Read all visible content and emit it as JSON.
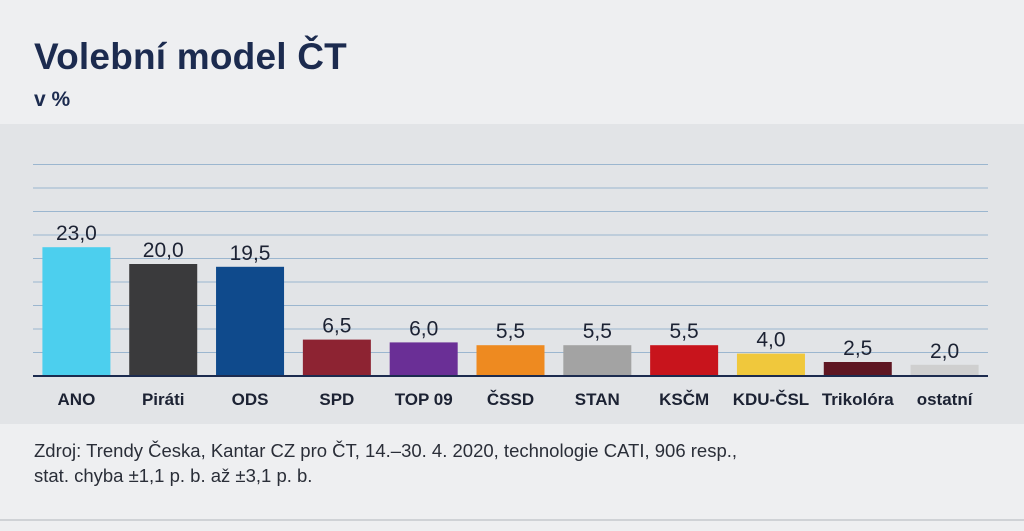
{
  "header": {
    "title": "Volební model ČT",
    "subtitle": "v %"
  },
  "colors": {
    "gridline": "#9bb6cf",
    "baseline": "#1c2b4f"
  },
  "chart_data": {
    "type": "bar",
    "title": "Volební model ČT",
    "subtitle": "v %",
    "xlabel": "",
    "ylabel": "",
    "ylim": [
      0,
      30
    ],
    "grid": true,
    "categories": [
      "ANO",
      "Piráti",
      "ODS",
      "SPD",
      "TOP 09",
      "ČSSD",
      "STAN",
      "KSČM",
      "KDU-ČSL",
      "Trikolóra",
      "ostatní"
    ],
    "values": [
      23.0,
      20.0,
      19.5,
      6.5,
      6.0,
      5.5,
      5.5,
      5.5,
      4.0,
      2.5,
      2.0
    ],
    "value_labels": [
      "23,0",
      "20,0",
      "19,5",
      "6,5",
      "6,0",
      "5,5",
      "5,5",
      "5,5",
      "4,0",
      "2,5",
      "2,0"
    ],
    "bar_colors": [
      "#4ccfee",
      "#3a3a3c",
      "#0f4a8c",
      "#8d2332",
      "#6a2f96",
      "#ee8a20",
      "#a3a3a3",
      "#c8141c",
      "#f0c83c",
      "#5e1622",
      "#cfcfcf"
    ]
  },
  "footer": {
    "line1": "Zdroj: Trendy Česka, Kantar CZ pro ČT, 14.–30. 4. 2020, technologie CATI, 906 resp.,",
    "line2": "stat. chyba ±1,1 p. b. až ±3,1 p. b."
  }
}
